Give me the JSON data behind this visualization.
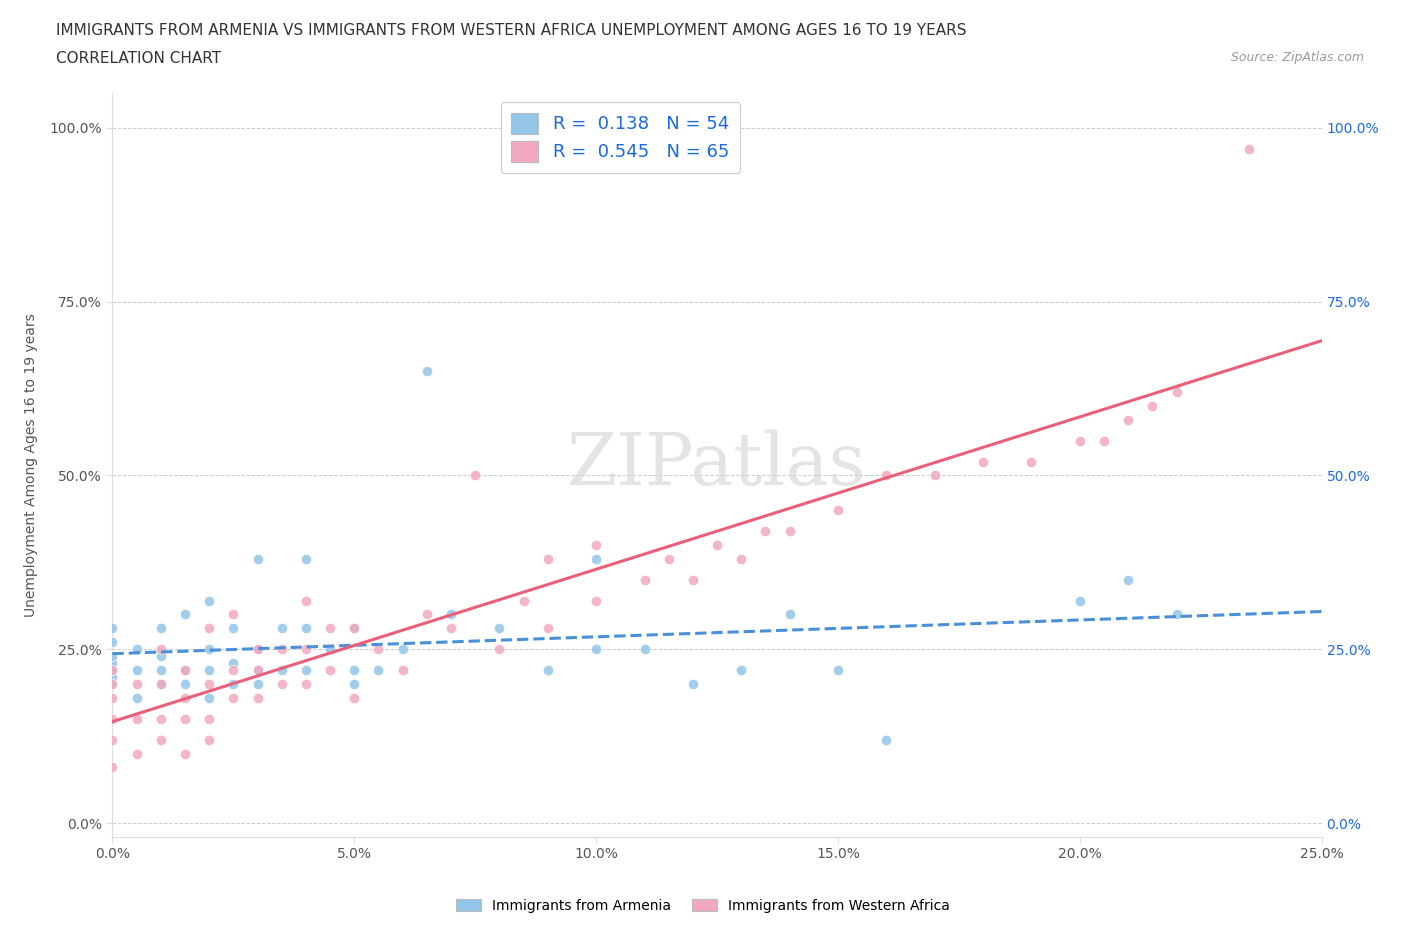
{
  "title_line1": "IMMIGRANTS FROM ARMENIA VS IMMIGRANTS FROM WESTERN AFRICA UNEMPLOYMENT AMONG AGES 16 TO 19 YEARS",
  "title_line2": "CORRELATION CHART",
  "source_text": "Source: ZipAtlas.com",
  "ylabel": "Unemployment Among Ages 16 to 19 years",
  "legend_label1": "Immigrants from Armenia",
  "legend_label2": "Immigrants from Western Africa",
  "R1": 0.138,
  "N1": 54,
  "R2": 0.545,
  "N2": 65,
  "color1": "#92C5E8",
  "color2": "#F2A8BF",
  "line_color1": "#4A90D9",
  "line_color2": "#E8607A",
  "text_color": "#1a6adb",
  "background_color": "#ffffff",
  "grid_color": "#cccccc",
  "xlim": [
    0.0,
    0.25
  ],
  "ylim": [
    -0.02,
    1.05
  ],
  "xtick_labels": [
    "0.0%",
    "5.0%",
    "10.0%",
    "15.0%",
    "20.0%",
    "25.0%"
  ],
  "xtick_vals": [
    0.0,
    0.05,
    0.1,
    0.15,
    0.2,
    0.25
  ],
  "ytick_labels": [
    "0.0%",
    "25.0%",
    "50.0%",
    "75.0%",
    "100.0%"
  ],
  "ytick_vals": [
    0.0,
    0.25,
    0.5,
    0.75,
    1.0
  ],
  "armenia_x": [
    0.0,
    0.0,
    0.0,
    0.0,
    0.0,
    0.0,
    0.0,
    0.005,
    0.005,
    0.005,
    0.01,
    0.01,
    0.01,
    0.01,
    0.015,
    0.015,
    0.015,
    0.02,
    0.02,
    0.02,
    0.02,
    0.025,
    0.025,
    0.025,
    0.03,
    0.03,
    0.03,
    0.03,
    0.035,
    0.035,
    0.04,
    0.04,
    0.04,
    0.045,
    0.05,
    0.05,
    0.05,
    0.055,
    0.06,
    0.065,
    0.07,
    0.08,
    0.09,
    0.1,
    0.1,
    0.11,
    0.12,
    0.13,
    0.14,
    0.15,
    0.16,
    0.2,
    0.21,
    0.22
  ],
  "armenia_y": [
    0.2,
    0.21,
    0.22,
    0.23,
    0.24,
    0.26,
    0.28,
    0.18,
    0.22,
    0.25,
    0.2,
    0.22,
    0.24,
    0.28,
    0.2,
    0.22,
    0.3,
    0.18,
    0.22,
    0.25,
    0.32,
    0.2,
    0.23,
    0.28,
    0.2,
    0.22,
    0.25,
    0.38,
    0.22,
    0.28,
    0.22,
    0.28,
    0.38,
    0.25,
    0.2,
    0.22,
    0.28,
    0.22,
    0.25,
    0.65,
    0.3,
    0.28,
    0.22,
    0.25,
    0.38,
    0.25,
    0.2,
    0.22,
    0.3,
    0.22,
    0.12,
    0.32,
    0.35,
    0.3
  ],
  "western_africa_x": [
    0.0,
    0.0,
    0.0,
    0.0,
    0.0,
    0.0,
    0.005,
    0.005,
    0.005,
    0.01,
    0.01,
    0.01,
    0.01,
    0.015,
    0.015,
    0.015,
    0.015,
    0.02,
    0.02,
    0.02,
    0.02,
    0.025,
    0.025,
    0.025,
    0.03,
    0.03,
    0.03,
    0.035,
    0.035,
    0.04,
    0.04,
    0.04,
    0.045,
    0.045,
    0.05,
    0.05,
    0.055,
    0.06,
    0.065,
    0.07,
    0.075,
    0.08,
    0.085,
    0.09,
    0.09,
    0.1,
    0.1,
    0.11,
    0.115,
    0.12,
    0.125,
    0.13,
    0.135,
    0.14,
    0.15,
    0.16,
    0.17,
    0.18,
    0.19,
    0.2,
    0.205,
    0.21,
    0.215,
    0.22,
    0.235
  ],
  "western_africa_y": [
    0.08,
    0.12,
    0.15,
    0.18,
    0.2,
    0.22,
    0.1,
    0.15,
    0.2,
    0.12,
    0.15,
    0.2,
    0.25,
    0.1,
    0.15,
    0.18,
    0.22,
    0.12,
    0.15,
    0.2,
    0.28,
    0.18,
    0.22,
    0.3,
    0.18,
    0.22,
    0.25,
    0.2,
    0.25,
    0.2,
    0.25,
    0.32,
    0.22,
    0.28,
    0.18,
    0.28,
    0.25,
    0.22,
    0.3,
    0.28,
    0.5,
    0.25,
    0.32,
    0.28,
    0.38,
    0.32,
    0.4,
    0.35,
    0.38,
    0.35,
    0.4,
    0.38,
    0.42,
    0.42,
    0.45,
    0.5,
    0.5,
    0.52,
    0.52,
    0.55,
    0.55,
    0.58,
    0.6,
    0.62,
    0.97
  ]
}
